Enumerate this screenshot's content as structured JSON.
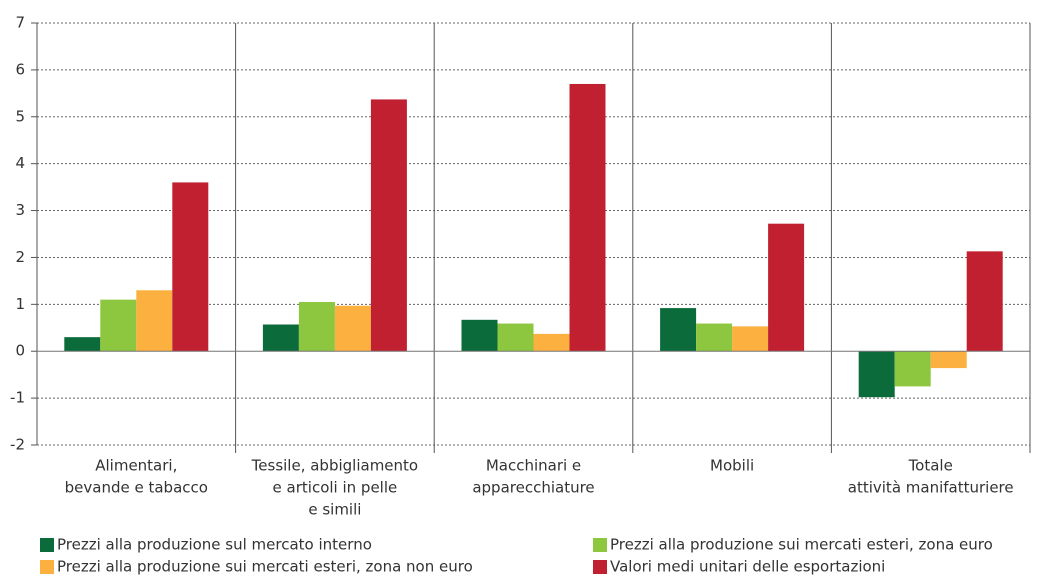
{
  "chart_data": {
    "type": "bar",
    "categories": [
      [
        "Alimentari,",
        "bevande e tabacco"
      ],
      [
        "Tessile, abbigliamento",
        "e articoli in pelle",
        "e simili"
      ],
      [
        "Macchinari e",
        "apparecchiature"
      ],
      [
        "Mobili"
      ],
      [
        "Totale",
        "attività manifatturiere"
      ]
    ],
    "series": [
      {
        "name": "Prezzi alla produzione sul mercato interno",
        "color": "#0b6b3a",
        "values": [
          0.3,
          0.57,
          0.67,
          0.92,
          -0.98
        ]
      },
      {
        "name": "Prezzi alla produzione sui mercati esteri, zona euro",
        "color": "#8dc63f",
        "values": [
          1.1,
          1.05,
          0.59,
          0.59,
          -0.75
        ]
      },
      {
        "name": "Prezzi alla produzione sui mercati esteri, zona non euro",
        "color": "#fbb040",
        "values": [
          1.3,
          0.97,
          0.37,
          0.53,
          -0.36
        ]
      },
      {
        "name": "Valori medi unitari delle esportazioni",
        "color": "#c0202f",
        "values": [
          3.6,
          5.37,
          5.7,
          2.72,
          2.13
        ]
      }
    ],
    "ylim": [
      -2,
      7
    ],
    "yticks": [
      -2,
      -1,
      0,
      1,
      2,
      3,
      4,
      5,
      6,
      7
    ],
    "grid": true
  }
}
